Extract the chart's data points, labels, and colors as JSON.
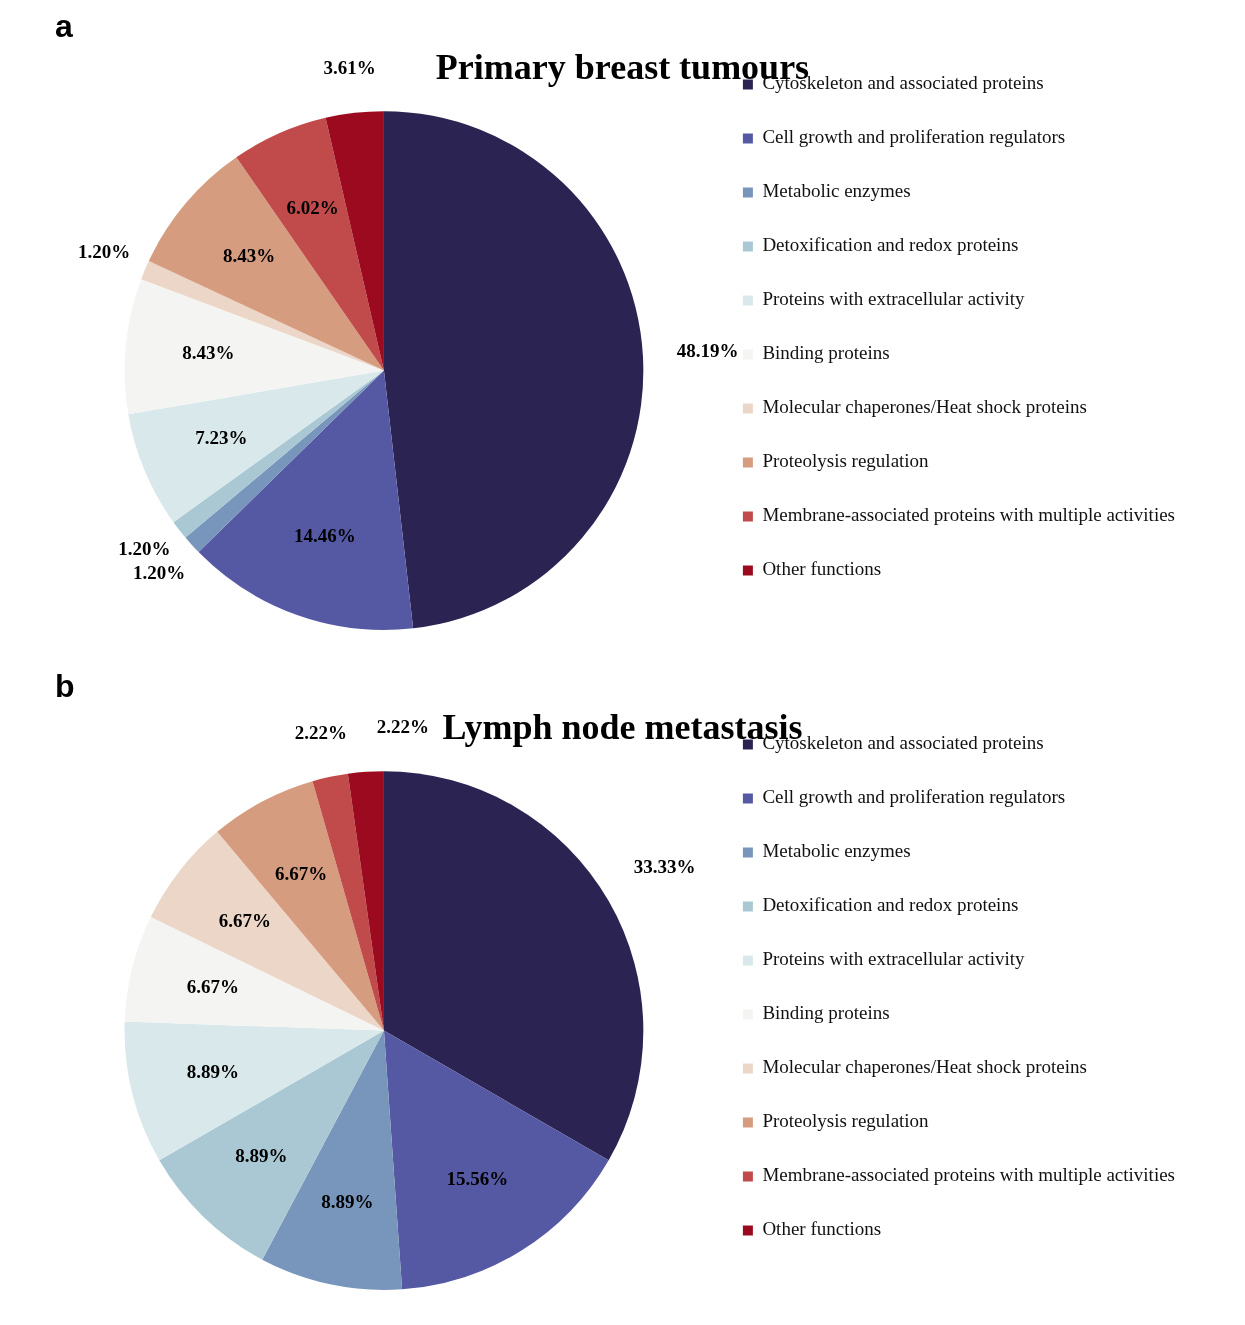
{
  "chart_data": [
    {
      "type": "pie",
      "title": "Primary breast tumours",
      "annotations": [
        "a"
      ],
      "legend": "right",
      "categories": [
        "Cytoskeleton and associated proteins",
        "Cell growth and proliferation regulators",
        "Metabolic enzymes",
        "Detoxification and redox proteins",
        "Proteins with extracellular activity",
        "Binding proteins",
        "Molecular chaperones/Heat shock proteins",
        "Proteolysis regulation",
        "Membrane-associated proteins with multiple activities",
        "Other functions"
      ],
      "values": [
        48.19,
        14.46,
        1.2,
        1.2,
        7.23,
        8.43,
        1.2,
        8.43,
        6.02,
        3.61
      ],
      "value_labels": [
        "48.19%",
        "14.46%",
        "1.20%",
        "1.20%",
        "7.23%",
        "8.43%",
        "1.20%",
        "8.43%",
        "6.02%",
        "3.61%"
      ],
      "colors": [
        "#2b2452",
        "#5558a3",
        "#7895bb",
        "#a9c8d3",
        "#d9e8ea",
        "#f4f4f2",
        "#ecd6c8",
        "#d69c7f",
        "#c14b4b",
        "#9b0a1e"
      ]
    },
    {
      "type": "pie",
      "title": "Lymph node metastasis",
      "annotations": [
        "b"
      ],
      "legend": "right",
      "categories": [
        "Cytoskeleton and associated proteins",
        "Cell growth and proliferation regulators",
        "Metabolic enzymes",
        "Detoxification and redox proteins",
        "Proteins with extracellular activity",
        "Binding proteins",
        "Molecular chaperones/Heat shock proteins",
        "Proteolysis regulation",
        "Membrane-associated proteins with multiple activities",
        "Other functions"
      ],
      "values": [
        33.33,
        15.56,
        8.89,
        8.89,
        8.89,
        6.67,
        6.67,
        6.67,
        2.22,
        2.22
      ],
      "value_labels": [
        "33.33%",
        "15.56%",
        "8.89%",
        "8.89%",
        "8.89%",
        "6.67%",
        "6.67%",
        "6.67%",
        "2.22%",
        "2.22%"
      ],
      "colors": [
        "#2b2452",
        "#5558a3",
        "#7895bb",
        "#a9c8d3",
        "#d9e8ea",
        "#f4f4f2",
        "#ecd6c8",
        "#d69c7f",
        "#c14b4b",
        "#9b0a1e"
      ]
    }
  ]
}
